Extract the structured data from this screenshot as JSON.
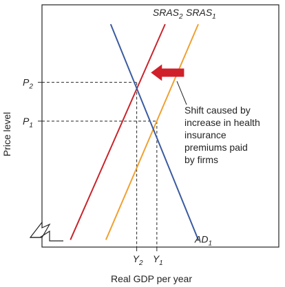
{
  "chart_data": {
    "type": "line",
    "title": "",
    "xlabel": "Real GDP per year",
    "ylabel": "Price level",
    "xlim": [
      0,
      10
    ],
    "ylim": [
      0,
      10
    ],
    "ticks": {
      "x": [
        {
          "name": "Y",
          "sub": "2",
          "value": 4.0
        },
        {
          "name": "Y",
          "sub": "1",
          "value": 4.85
        }
      ],
      "y": [
        {
          "name": "P",
          "sub": "2",
          "value": 6.8
        },
        {
          "name": "P",
          "sub": "1",
          "value": 5.2
        }
      ]
    },
    "series": [
      {
        "name": "SRAS",
        "sub": "2",
        "color": "#c8242b",
        "points": [
          [
            1.2,
            0.3
          ],
          [
            5.2,
            9.2
          ]
        ]
      },
      {
        "name": "SRAS",
        "sub": "1",
        "color": "#f0a030",
        "points": [
          [
            2.7,
            0.3
          ],
          [
            6.6,
            9.2
          ]
        ]
      },
      {
        "name": "AD",
        "sub": "1",
        "color": "#3a5aa0",
        "points": [
          [
            2.9,
            9.2
          ],
          [
            6.6,
            0.3
          ]
        ]
      }
    ],
    "axis_break": true,
    "grid": false,
    "annotation": {
      "lines": [
        "Shift caused by",
        "increase in health",
        "insurance",
        "premiums paid",
        "by firms"
      ],
      "arrow_color": "#d0202a",
      "from": [
        6.0,
        7.2
      ],
      "to": [
        4.6,
        7.2
      ]
    }
  }
}
